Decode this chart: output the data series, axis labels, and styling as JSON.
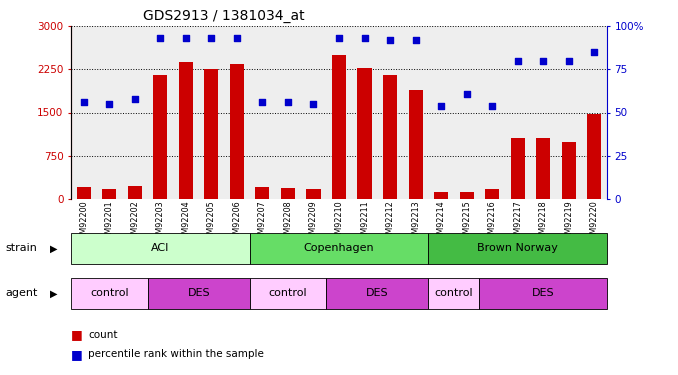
{
  "title": "GDS2913 / 1381034_at",
  "samples": [
    "GSM92200",
    "GSM92201",
    "GSM92202",
    "GSM92203",
    "GSM92204",
    "GSM92205",
    "GSM92206",
    "GSM92207",
    "GSM92208",
    "GSM92209",
    "GSM92210",
    "GSM92211",
    "GSM92212",
    "GSM92213",
    "GSM92214",
    "GSM92215",
    "GSM92216",
    "GSM92217",
    "GSM92218",
    "GSM92219",
    "GSM92220"
  ],
  "counts": [
    200,
    165,
    215,
    2150,
    2380,
    2250,
    2350,
    200,
    195,
    165,
    2500,
    2280,
    2150,
    1900,
    115,
    120,
    175,
    1050,
    1050,
    980,
    1480
  ],
  "percentiles": [
    56,
    55,
    58,
    93,
    93,
    93,
    93,
    56,
    56,
    55,
    93,
    93,
    92,
    92,
    54,
    61,
    54,
    80,
    80,
    80,
    85
  ],
  "ylim_left": [
    0,
    3000
  ],
  "ylim_right": [
    0,
    100
  ],
  "yticks_left": [
    0,
    750,
    1500,
    2250,
    3000
  ],
  "yticks_right": [
    0,
    25,
    50,
    75,
    100
  ],
  "bar_color": "#cc0000",
  "dot_color": "#0000cc",
  "strain_groups": [
    {
      "label": "ACI",
      "start": 0,
      "end": 7,
      "color": "#ccffcc"
    },
    {
      "label": "Copenhagen",
      "start": 7,
      "end": 14,
      "color": "#66dd66"
    },
    {
      "label": "Brown Norway",
      "start": 14,
      "end": 21,
      "color": "#44bb44"
    }
  ],
  "agent_groups": [
    {
      "label": "control",
      "start": 0,
      "end": 3,
      "color": "#ffccff"
    },
    {
      "label": "DES",
      "start": 3,
      "end": 7,
      "color": "#cc44cc"
    },
    {
      "label": "control",
      "start": 7,
      "end": 10,
      "color": "#ffccff"
    },
    {
      "label": "DES",
      "start": 10,
      "end": 14,
      "color": "#cc44cc"
    },
    {
      "label": "control",
      "start": 14,
      "end": 16,
      "color": "#ffccff"
    },
    {
      "label": "DES",
      "start": 16,
      "end": 21,
      "color": "#cc44cc"
    }
  ]
}
